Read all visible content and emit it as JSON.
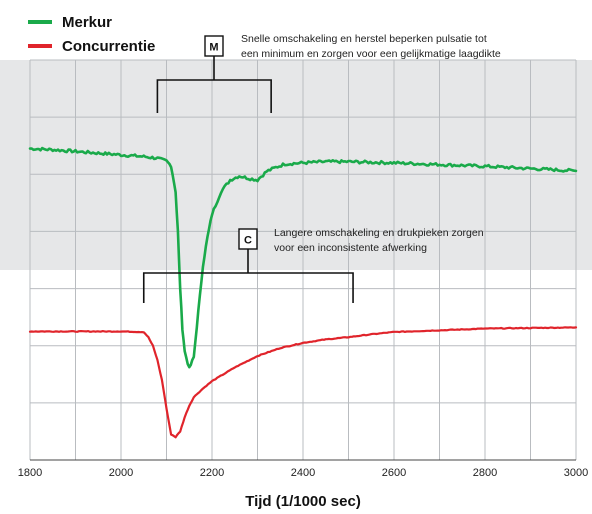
{
  "chart_data": {
    "type": "line",
    "xlabel": "Tijd (1/1000 sec)",
    "ylabel": "",
    "xlim": [
      1800,
      3000
    ],
    "ylim": [
      0,
      7
    ],
    "x_ticks": [
      "1800",
      "2000",
      "2200",
      "2400",
      "2600",
      "2800",
      "3000"
    ],
    "grid": true,
    "legend_position": "top-left",
    "series": [
      {
        "name": "Merkur",
        "color": "#1aaa4a",
        "x": [
          1800,
          1850,
          1900,
          1950,
          2000,
          2050,
          2080,
          2100,
          2110,
          2120,
          2125,
          2130,
          2135,
          2140,
          2150,
          2160,
          2170,
          2180,
          2190,
          2200,
          2220,
          2240,
          2260,
          2280,
          2300,
          2320,
          2340,
          2360,
          2400,
          2450,
          2500,
          2600,
          2700,
          2800,
          2900,
          3000
        ],
        "values": [
          5.45,
          5.43,
          5.4,
          5.37,
          5.34,
          5.31,
          5.28,
          5.23,
          5.15,
          4.7,
          4.0,
          3.0,
          2.3,
          1.9,
          1.6,
          1.8,
          2.6,
          3.4,
          3.9,
          4.3,
          4.7,
          4.9,
          4.97,
          4.93,
          4.9,
          5.05,
          5.12,
          5.18,
          5.2,
          5.22,
          5.22,
          5.2,
          5.17,
          5.14,
          5.1,
          5.06
        ]
      },
      {
        "name": "Concurrentie",
        "color": "#e0242b",
        "x": [
          1800,
          1900,
          2000,
          2050,
          2060,
          2070,
          2080,
          2090,
          2100,
          2110,
          2120,
          2130,
          2140,
          2150,
          2160,
          2180,
          2200,
          2250,
          2300,
          2350,
          2400,
          2450,
          2500,
          2550,
          2600,
          2700,
          2800,
          2900,
          3000
        ],
        "values": [
          2.25,
          2.25,
          2.25,
          2.24,
          2.15,
          2.0,
          1.75,
          1.4,
          0.9,
          0.45,
          0.4,
          0.5,
          0.75,
          0.95,
          1.1,
          1.25,
          1.38,
          1.62,
          1.82,
          1.96,
          2.05,
          2.11,
          2.15,
          2.2,
          2.24,
          2.27,
          2.3,
          2.31,
          2.32
        ]
      }
    ],
    "annotations": [
      {
        "label": "M",
        "text_lines": [
          "Snelle omschakeling en herstel beperken pulsatie tot",
          "een minimum en zorgen voor een gelijkmatige laagdikte"
        ],
        "x_range": [
          2080,
          2330
        ]
      },
      {
        "label": "C",
        "text_lines": [
          "Langere omschakeling en drukpieken zorgen",
          "voor een inconsistente afwerking"
        ],
        "x_range": [
          2050,
          2510
        ]
      }
    ]
  }
}
